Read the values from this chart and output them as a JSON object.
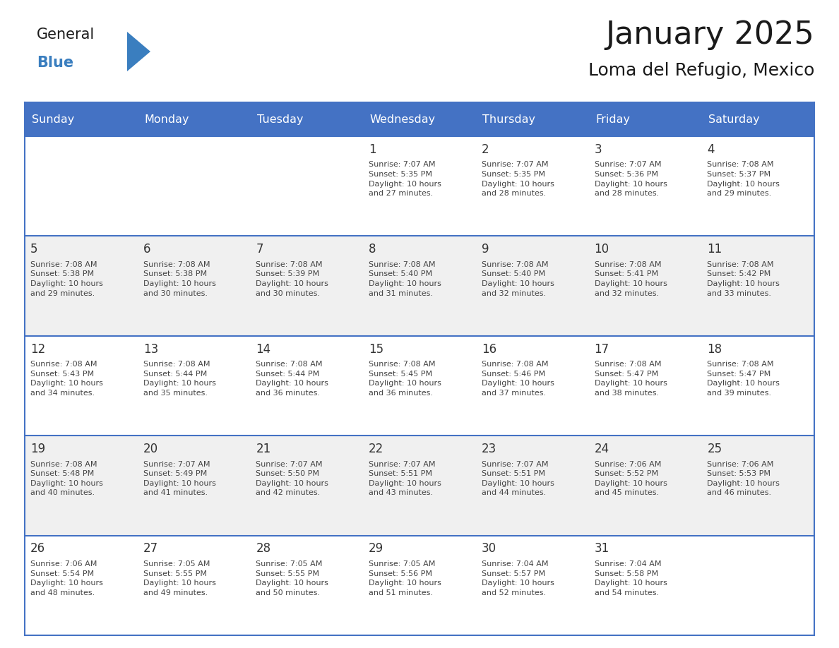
{
  "title": "January 2025",
  "subtitle": "Loma del Refugio, Mexico",
  "days_of_week": [
    "Sunday",
    "Monday",
    "Tuesday",
    "Wednesday",
    "Thursday",
    "Friday",
    "Saturday"
  ],
  "header_bg_color": "#4472C4",
  "header_text_color": "#FFFFFF",
  "cell_bg_color_even": "#FFFFFF",
  "cell_bg_color_odd": "#F0F0F0",
  "cell_text_color": "#444444",
  "day_number_color": "#333333",
  "border_color": "#4472C4",
  "title_color": "#1a1a1a",
  "subtitle_color": "#1a1a1a",
  "logo_general_color": "#1a1a1a",
  "logo_blue_color": "#3A7EBF",
  "calendar_data": [
    [
      {
        "day": null,
        "info": ""
      },
      {
        "day": null,
        "info": ""
      },
      {
        "day": null,
        "info": ""
      },
      {
        "day": 1,
        "info": "Sunrise: 7:07 AM\nSunset: 5:35 PM\nDaylight: 10 hours\nand 27 minutes."
      },
      {
        "day": 2,
        "info": "Sunrise: 7:07 AM\nSunset: 5:35 PM\nDaylight: 10 hours\nand 28 minutes."
      },
      {
        "day": 3,
        "info": "Sunrise: 7:07 AM\nSunset: 5:36 PM\nDaylight: 10 hours\nand 28 minutes."
      },
      {
        "day": 4,
        "info": "Sunrise: 7:08 AM\nSunset: 5:37 PM\nDaylight: 10 hours\nand 29 minutes."
      }
    ],
    [
      {
        "day": 5,
        "info": "Sunrise: 7:08 AM\nSunset: 5:38 PM\nDaylight: 10 hours\nand 29 minutes."
      },
      {
        "day": 6,
        "info": "Sunrise: 7:08 AM\nSunset: 5:38 PM\nDaylight: 10 hours\nand 30 minutes."
      },
      {
        "day": 7,
        "info": "Sunrise: 7:08 AM\nSunset: 5:39 PM\nDaylight: 10 hours\nand 30 minutes."
      },
      {
        "day": 8,
        "info": "Sunrise: 7:08 AM\nSunset: 5:40 PM\nDaylight: 10 hours\nand 31 minutes."
      },
      {
        "day": 9,
        "info": "Sunrise: 7:08 AM\nSunset: 5:40 PM\nDaylight: 10 hours\nand 32 minutes."
      },
      {
        "day": 10,
        "info": "Sunrise: 7:08 AM\nSunset: 5:41 PM\nDaylight: 10 hours\nand 32 minutes."
      },
      {
        "day": 11,
        "info": "Sunrise: 7:08 AM\nSunset: 5:42 PM\nDaylight: 10 hours\nand 33 minutes."
      }
    ],
    [
      {
        "day": 12,
        "info": "Sunrise: 7:08 AM\nSunset: 5:43 PM\nDaylight: 10 hours\nand 34 minutes."
      },
      {
        "day": 13,
        "info": "Sunrise: 7:08 AM\nSunset: 5:44 PM\nDaylight: 10 hours\nand 35 minutes."
      },
      {
        "day": 14,
        "info": "Sunrise: 7:08 AM\nSunset: 5:44 PM\nDaylight: 10 hours\nand 36 minutes."
      },
      {
        "day": 15,
        "info": "Sunrise: 7:08 AM\nSunset: 5:45 PM\nDaylight: 10 hours\nand 36 minutes."
      },
      {
        "day": 16,
        "info": "Sunrise: 7:08 AM\nSunset: 5:46 PM\nDaylight: 10 hours\nand 37 minutes."
      },
      {
        "day": 17,
        "info": "Sunrise: 7:08 AM\nSunset: 5:47 PM\nDaylight: 10 hours\nand 38 minutes."
      },
      {
        "day": 18,
        "info": "Sunrise: 7:08 AM\nSunset: 5:47 PM\nDaylight: 10 hours\nand 39 minutes."
      }
    ],
    [
      {
        "day": 19,
        "info": "Sunrise: 7:08 AM\nSunset: 5:48 PM\nDaylight: 10 hours\nand 40 minutes."
      },
      {
        "day": 20,
        "info": "Sunrise: 7:07 AM\nSunset: 5:49 PM\nDaylight: 10 hours\nand 41 minutes."
      },
      {
        "day": 21,
        "info": "Sunrise: 7:07 AM\nSunset: 5:50 PM\nDaylight: 10 hours\nand 42 minutes."
      },
      {
        "day": 22,
        "info": "Sunrise: 7:07 AM\nSunset: 5:51 PM\nDaylight: 10 hours\nand 43 minutes."
      },
      {
        "day": 23,
        "info": "Sunrise: 7:07 AM\nSunset: 5:51 PM\nDaylight: 10 hours\nand 44 minutes."
      },
      {
        "day": 24,
        "info": "Sunrise: 7:06 AM\nSunset: 5:52 PM\nDaylight: 10 hours\nand 45 minutes."
      },
      {
        "day": 25,
        "info": "Sunrise: 7:06 AM\nSunset: 5:53 PM\nDaylight: 10 hours\nand 46 minutes."
      }
    ],
    [
      {
        "day": 26,
        "info": "Sunrise: 7:06 AM\nSunset: 5:54 PM\nDaylight: 10 hours\nand 48 minutes."
      },
      {
        "day": 27,
        "info": "Sunrise: 7:05 AM\nSunset: 5:55 PM\nDaylight: 10 hours\nand 49 minutes."
      },
      {
        "day": 28,
        "info": "Sunrise: 7:05 AM\nSunset: 5:55 PM\nDaylight: 10 hours\nand 50 minutes."
      },
      {
        "day": 29,
        "info": "Sunrise: 7:05 AM\nSunset: 5:56 PM\nDaylight: 10 hours\nand 51 minutes."
      },
      {
        "day": 30,
        "info": "Sunrise: 7:04 AM\nSunset: 5:57 PM\nDaylight: 10 hours\nand 52 minutes."
      },
      {
        "day": 31,
        "info": "Sunrise: 7:04 AM\nSunset: 5:58 PM\nDaylight: 10 hours\nand 54 minutes."
      },
      {
        "day": null,
        "info": ""
      }
    ]
  ]
}
